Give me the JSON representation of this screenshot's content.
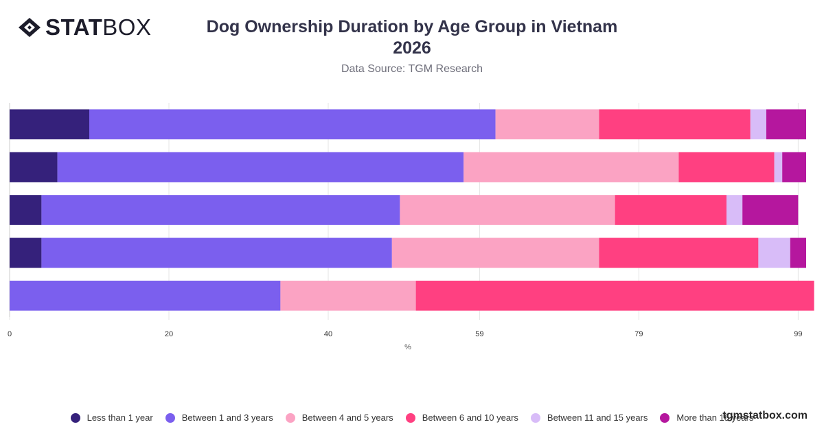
{
  "brand": {
    "logo_bold": "STAT",
    "logo_light": "BOX",
    "watermark": "tgmstatbox.com"
  },
  "title_line1": "Dog Ownership Duration by Age Group in Vietnam",
  "title_line2": "2026",
  "subtitle": "Data Source: TGM Research",
  "chart_data": {
    "type": "bar",
    "orientation": "horizontal",
    "stacked": true,
    "title": "Dog Ownership Duration by Age Group in Vietnam 2026",
    "subtitle": "Data Source: TGM Research",
    "xlabel": "%",
    "ylabel": "",
    "categories": [
      "",
      "",
      "",
      "",
      ""
    ],
    "x_ticks": [
      "0",
      "20",
      "40",
      "59",
      "79",
      "99"
    ],
    "x_tick_values": [
      0,
      20,
      40,
      59,
      79,
      99
    ],
    "xlim": [
      0,
      100
    ],
    "grid": true,
    "legend_position": "bottom",
    "series": [
      {
        "name": "Less than 1 year",
        "color": "#35217b",
        "values": [
          10,
          6,
          4,
          4,
          0
        ]
      },
      {
        "name": "Between 1 and 3 years",
        "color": "#7b5fee",
        "values": [
          51,
          51,
          45,
          44,
          34
        ]
      },
      {
        "name": "Between 4 and 5 years",
        "color": "#fba3c3",
        "values": [
          13,
          27,
          27,
          26,
          17
        ]
      },
      {
        "name": "Between 6 and 10 years",
        "color": "#ff4081",
        "values": [
          19,
          12,
          14,
          20,
          50
        ]
      },
      {
        "name": "Between 11 and 15 years",
        "color": "#d8bcf8",
        "values": [
          2,
          1,
          2,
          4,
          0
        ]
      },
      {
        "name": "More than 15 years",
        "color": "#b5179e",
        "values": [
          5,
          3,
          7,
          2,
          0
        ]
      }
    ]
  }
}
